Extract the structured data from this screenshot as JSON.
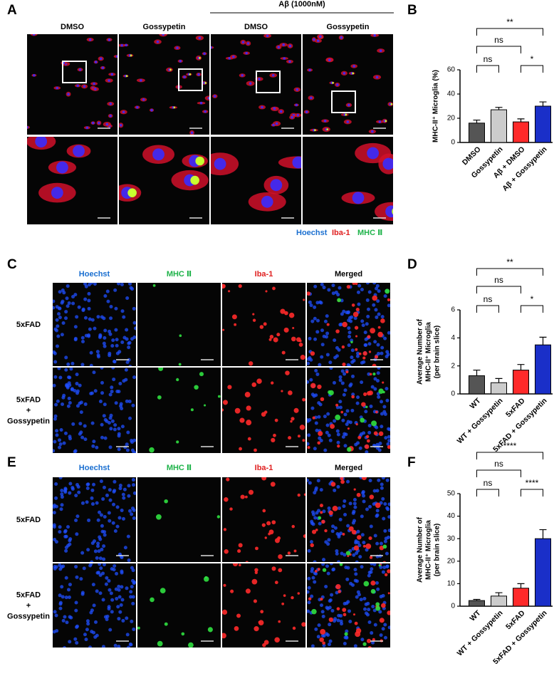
{
  "image_panels": [
    {
      "label": "A",
      "group_header": "Aβ (1000nM)",
      "columns": [
        "DMSO",
        "Gossypetin",
        "DMSO",
        "Gossypetin"
      ],
      "legend": [
        "Hoechst",
        "Iba-1",
        "MHC Ⅱ"
      ]
    },
    {
      "label": "C",
      "columns": [
        "Hoechst",
        "MHC Ⅱ",
        "Iba-1",
        "Merged"
      ],
      "rows": [
        [
          "5xFAD"
        ],
        [
          "5xFAD",
          "+",
          "Gossypetin"
        ]
      ]
    },
    {
      "label": "E",
      "columns": [
        "Hoechst",
        "MHC Ⅱ",
        "Iba-1",
        "Merged"
      ],
      "rows": [
        [
          "5xFAD"
        ],
        [
          "5xFAD",
          "+",
          "Gossypetin"
        ]
      ]
    }
  ],
  "chart_data": [
    {
      "type": "bar",
      "panel_label": "B",
      "ylabel": [
        "MHC-II⁺ Microglia (%)"
      ],
      "categories": [
        "DMSO",
        "Gossypetin",
        "Aβ + DMSO",
        "Aβ + Gossypetin"
      ],
      "values": [
        16,
        27,
        17,
        30
      ],
      "errors": [
        2.5,
        2,
        2.5,
        3.5
      ],
      "colors": [
        "#555555",
        "#cccccc",
        "#ff2a2a",
        "#1a2fc8"
      ],
      "ylim": [
        0,
        60
      ],
      "yticks": [
        0,
        20,
        40,
        60
      ],
      "significance": [
        "**",
        "ns",
        "ns",
        "*"
      ]
    },
    {
      "type": "bar",
      "panel_label": "D",
      "ylabel": [
        "Average Number of",
        "MHC-II⁺ Microglia",
        "(per brain slice)"
      ],
      "categories": [
        "WT",
        "WT + Gossypetin",
        "5xFAD",
        "5xFAD + Gossypetin"
      ],
      "values": [
        1.3,
        0.8,
        1.7,
        3.5
      ],
      "errors": [
        0.4,
        0.3,
        0.4,
        0.55
      ],
      "colors": [
        "#555555",
        "#cccccc",
        "#ff2a2a",
        "#1a2fc8"
      ],
      "ylim": [
        0,
        6
      ],
      "yticks": [
        0,
        2,
        4,
        6
      ],
      "significance": [
        "**",
        "ns",
        "ns",
        "*"
      ]
    },
    {
      "type": "bar",
      "panel_label": "F",
      "ylabel": [
        "Average Number of",
        "MHC-II⁺ Microglia",
        "(per brain slice)"
      ],
      "categories": [
        "WT",
        "WT + Gossypetin",
        "5xFAD",
        "5xFAD + Gossypetin"
      ],
      "values": [
        2.5,
        4.5,
        8,
        30
      ],
      "errors": [
        0.5,
        1.5,
        2,
        4
      ],
      "colors": [
        "#555555",
        "#cccccc",
        "#ff2a2a",
        "#1a2fc8"
      ],
      "ylim": [
        0,
        50
      ],
      "yticks": [
        0,
        10,
        20,
        30,
        40,
        50
      ],
      "significance": [
        "****",
        "ns",
        "ns",
        "****"
      ]
    }
  ]
}
